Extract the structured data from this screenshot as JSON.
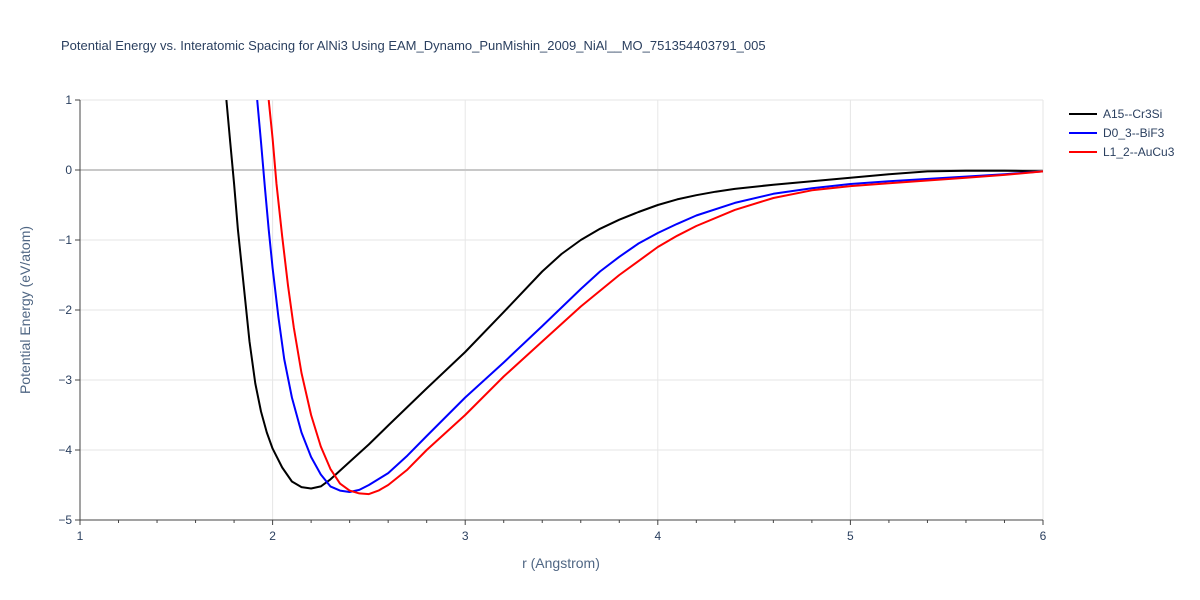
{
  "chart_data": {
    "type": "line",
    "title": "Potential Energy vs. Interatomic Spacing for AlNi3 Using EAM_Dynamo_PunMishin_2009_NiAl__MO_751354403791_005",
    "xlabel": "r (Angstrom)",
    "ylabel": "Potential Energy (eV/atom)",
    "xlim": [
      1,
      6
    ],
    "ylim": [
      -5,
      1
    ],
    "xticks": [
      1,
      2,
      3,
      4,
      5,
      6
    ],
    "xtick_labels": [
      "1",
      "2",
      "3",
      "4",
      "5",
      "6"
    ],
    "yticks": [
      1,
      0,
      -1,
      -2,
      -3,
      -4,
      -5
    ],
    "ytick_labels": [
      "1",
      "0",
      "−1",
      "−2",
      "−3",
      "−4",
      "−5"
    ],
    "grid": true,
    "legend_position": "top-right",
    "series": [
      {
        "name": "A15--Cr3Si",
        "color": "#000000",
        "x": [
          1.76,
          1.78,
          1.8,
          1.82,
          1.85,
          1.88,
          1.91,
          1.94,
          1.97,
          2.0,
          2.05,
          2.1,
          2.15,
          2.2,
          2.25,
          2.3,
          2.4,
          2.5,
          2.6,
          2.8,
          3.0,
          3.2,
          3.4,
          3.5,
          3.6,
          3.7,
          3.8,
          3.9,
          4.0,
          4.1,
          4.2,
          4.3,
          4.4,
          4.6,
          4.8,
          5.0,
          5.2,
          5.4,
          5.6,
          5.8,
          6.0
        ],
        "y": [
          1.0,
          0.4,
          -0.2,
          -0.85,
          -1.65,
          -2.45,
          -3.05,
          -3.45,
          -3.75,
          -3.98,
          -4.25,
          -4.45,
          -4.53,
          -4.55,
          -4.52,
          -4.42,
          -4.17,
          -3.92,
          -3.65,
          -3.12,
          -2.6,
          -2.03,
          -1.45,
          -1.2,
          -1.0,
          -0.84,
          -0.71,
          -0.6,
          -0.5,
          -0.42,
          -0.36,
          -0.31,
          -0.27,
          -0.21,
          -0.16,
          -0.11,
          -0.06,
          -0.02,
          -0.01,
          -0.01,
          -0.02
        ]
      },
      {
        "name": "D0_3--BiF3",
        "color": "#0000ff",
        "x": [
          1.92,
          1.94,
          1.96,
          1.98,
          2.0,
          2.03,
          2.06,
          2.1,
          2.15,
          2.2,
          2.25,
          2.3,
          2.35,
          2.4,
          2.45,
          2.5,
          2.6,
          2.7,
          2.8,
          3.0,
          3.2,
          3.4,
          3.6,
          3.7,
          3.8,
          3.9,
          4.0,
          4.1,
          4.2,
          4.4,
          4.6,
          4.8,
          5.0,
          5.2,
          5.5,
          5.8,
          6.0
        ],
        "y": [
          1.0,
          0.4,
          -0.25,
          -0.85,
          -1.4,
          -2.1,
          -2.7,
          -3.25,
          -3.75,
          -4.1,
          -4.35,
          -4.52,
          -4.58,
          -4.6,
          -4.57,
          -4.5,
          -4.33,
          -4.08,
          -3.8,
          -3.25,
          -2.75,
          -2.23,
          -1.7,
          -1.45,
          -1.24,
          -1.05,
          -0.9,
          -0.77,
          -0.65,
          -0.47,
          -0.34,
          -0.26,
          -0.2,
          -0.16,
          -0.11,
          -0.06,
          -0.02
        ]
      },
      {
        "name": "L1_2--AuCu3",
        "color": "#ff0000",
        "x": [
          1.98,
          2.0,
          2.02,
          2.05,
          2.08,
          2.11,
          2.15,
          2.2,
          2.25,
          2.3,
          2.35,
          2.4,
          2.45,
          2.5,
          2.55,
          2.6,
          2.7,
          2.8,
          3.0,
          3.2,
          3.4,
          3.6,
          3.8,
          4.0,
          4.1,
          4.2,
          4.4,
          4.6,
          4.8,
          5.0,
          5.2,
          5.4,
          5.6,
          5.8,
          6.0
        ],
        "y": [
          1.0,
          0.45,
          -0.2,
          -0.95,
          -1.65,
          -2.25,
          -2.9,
          -3.5,
          -3.95,
          -4.27,
          -4.48,
          -4.58,
          -4.62,
          -4.63,
          -4.58,
          -4.5,
          -4.28,
          -4.0,
          -3.5,
          -2.95,
          -2.45,
          -1.95,
          -1.5,
          -1.1,
          -0.94,
          -0.8,
          -0.57,
          -0.4,
          -0.29,
          -0.23,
          -0.19,
          -0.15,
          -0.11,
          -0.07,
          -0.02
        ]
      }
    ]
  }
}
